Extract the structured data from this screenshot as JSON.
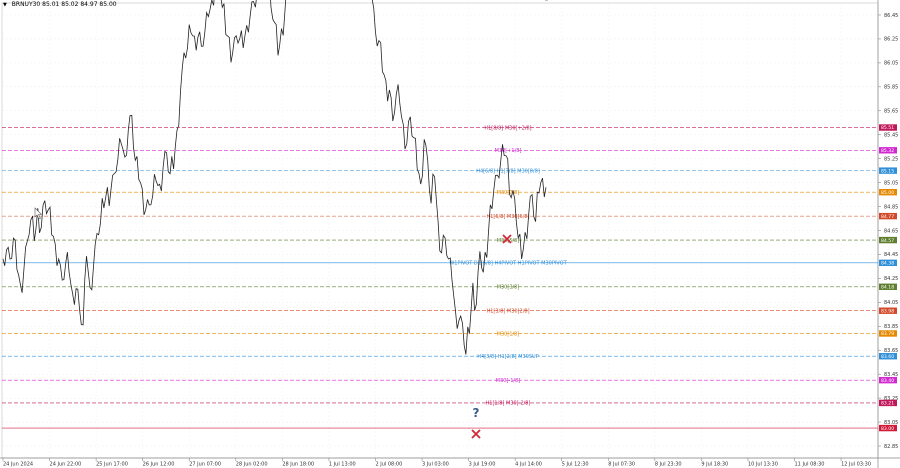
{
  "header": {
    "arrow": "▼",
    "symbol": "BRNUY30",
    "ohlc": "85.01 85.02 84.97 85.00"
  },
  "chart_data": {
    "type": "line",
    "price_axis": {
      "min": 82.75,
      "max": 86.55,
      "ticks": [
        "86.45",
        "86.25",
        "86.05",
        "85.85",
        "85.65",
        "85.45",
        "85.25",
        "85.05",
        "84.85",
        "84.65",
        "84.45",
        "84.25",
        "84.05",
        "83.85",
        "83.65",
        "83.45",
        "83.25",
        "83.05",
        "82.85"
      ]
    },
    "time_axis": {
      "labels": [
        "24 Jun 2024",
        "24 Jun 22:00",
        "25 Jun 17:00",
        "26 Jun 12:00",
        "27 Jun 07:00",
        "28 Jun 02:00",
        "28 Jun 18:00",
        "1 Jul 13:00",
        "2 Jul 08:00",
        "3 Jul 03:00",
        "3 Jul 19:00",
        "4 Jul 14:00",
        "5 Jul 12:30",
        "8 Jul 07:30",
        "8 Jul 23:30",
        "9 Jul 18:30",
        "10 Jul 13:30",
        "11 Jul 08:30",
        "12 Jul 03:30"
      ]
    },
    "series": [
      {
        "values": [
          84.45,
          84.5,
          84.4,
          84.55,
          84.35,
          84.2,
          84.3,
          84.6,
          84.75,
          84.55,
          84.8,
          84.7,
          84.9,
          84.8,
          84.65,
          84.55,
          84.4,
          84.2,
          84.4,
          84.3,
          84.1,
          84.2,
          84.0,
          83.85,
          84.4,
          84.2,
          84.35,
          84.6,
          84.75,
          84.85,
          85.0,
          84.95,
          85.15,
          85.25,
          85.35,
          85.3,
          85.5,
          85.6,
          85.2,
          85.1,
          85.0,
          84.8,
          84.9,
          84.95,
          85.05,
          85.0,
          85.2,
          85.3,
          85.1,
          85.2,
          85.5,
          85.8,
          86.1,
          86.2,
          86.3,
          86.25,
          86.3,
          86.2,
          86.3,
          86.4,
          86.6,
          86.7,
          86.8,
          86.55,
          86.3,
          86.25,
          86.1,
          86.3,
          86.25,
          86.15,
          86.4,
          86.45,
          86.55,
          86.6,
          86.7,
          86.75,
          86.85,
          86.55,
          86.4,
          86.1,
          86.3,
          86.5,
          86.8,
          86.65,
          86.9,
          87.0,
          86.75,
          86.9,
          86.7,
          86.6,
          86.7,
          86.9,
          86.8,
          87.1,
          87.2,
          87.4,
          86.95,
          86.9,
          87.2,
          86.9,
          87.25,
          87.3,
          87.1,
          87.55,
          87.45,
          87.0,
          86.6,
          86.3,
          86.2,
          86.0,
          85.9,
          85.8,
          85.6,
          85.8,
          85.7,
          85.5,
          85.4,
          85.6,
          85.4,
          85.2,
          85.05,
          85.4,
          85.2,
          84.9,
          85.1,
          84.7,
          84.5,
          84.6,
          84.4,
          84.2,
          84.0,
          83.9,
          83.85,
          83.65,
          83.8,
          84.2,
          84.0,
          84.5,
          84.3,
          84.4,
          84.9,
          85.0,
          85.1,
          85.2,
          85.3,
          85.25,
          84.9,
          84.95,
          84.6,
          84.4,
          84.6,
          84.8,
          84.95,
          84.7,
          85.0,
          85.1,
          85.0
        ]
      }
    ],
    "levels": [
      {
        "label": "H1[8/8] M30[+2/8]",
        "price": 85.51,
        "tag": "85.51",
        "color": "#c0185a",
        "style": "dash"
      },
      {
        "label": "M30[+1/8]",
        "price": 85.32,
        "tag": "85.32",
        "color": "#d12bd0",
        "style": "dash"
      },
      {
        "label": "H4[6/8] H1[7/8] M30[8/8]",
        "price": 85.15,
        "tag": "85.15",
        "color": "#2f8fd8",
        "style": "dash"
      },
      {
        "label": "M30[7/8]",
        "price": 84.97,
        "tag": "85.00",
        "color": "#e58a00",
        "style": "dash"
      },
      {
        "label": "H1[6/8] M30[6/8]",
        "price": 84.77,
        "tag": "84.77",
        "color": "#d2492a",
        "style": "dash"
      },
      {
        "label": "M30[5/8]",
        "price": 84.57,
        "tag": "84.57",
        "color": "#5f7f2f",
        "style": "dash"
      },
      {
        "label": "W1PIVOT D1[6/8] H4PIVOT H1PIVOT M30PIVOT",
        "price": 84.38,
        "tag": "84.38",
        "color": "#2f8fd8",
        "style": "solid"
      },
      {
        "label": "M30[3/8]",
        "price": 84.18,
        "tag": "84.18",
        "color": "#5f7f2f",
        "style": "dash"
      },
      {
        "label": "H1[3/8] M30[2/8]",
        "price": 83.98,
        "tag": "83.98",
        "color": "#d2492a",
        "style": "dash"
      },
      {
        "label": "M30[1/8]",
        "price": 83.79,
        "tag": "83.79",
        "color": "#e58a00",
        "style": "dash"
      },
      {
        "label": "H4[3/8] H1[2/8] M30SUP",
        "price": 83.6,
        "tag": "83.60",
        "color": "#2f8fd8",
        "style": "dash"
      },
      {
        "label": "M30[-1/8]",
        "price": 83.4,
        "tag": "83.40",
        "color": "#d12bd0",
        "style": "dash"
      },
      {
        "label": "H1[1/8] M30[-2/8]",
        "price": 83.21,
        "tag": "83.21",
        "color": "#c0185a",
        "style": "dash"
      },
      {
        "label": "",
        "price": 83.0,
        "tag": "83.00",
        "color": "#d11a3a",
        "style": "solid"
      }
    ],
    "grid": true
  },
  "colors": {
    "x_marker": "#d2283a",
    "question_marker": "#3a5c8a",
    "price_line": "#222222"
  },
  "icons": {
    "cross": "cross-marker-icon",
    "question": "question-marker-icon",
    "cursor": "mouse-cursor-icon"
  }
}
